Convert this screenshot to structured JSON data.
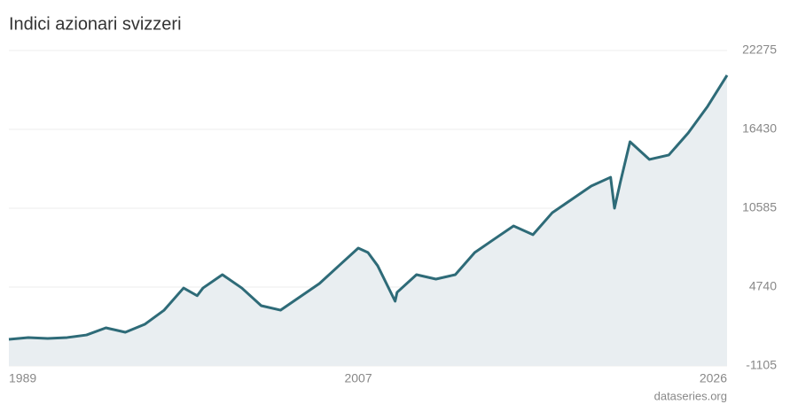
{
  "chart_data": {
    "type": "area",
    "title": "Indici azionari svizzeri",
    "source": "dataseries.org",
    "x": [
      1989,
      1990,
      1991,
      1992,
      1993,
      1994,
      1995,
      1996,
      1997,
      1998,
      1998.7,
      1999,
      2000,
      2001,
      2002,
      2003,
      2004,
      2005,
      2006,
      2007,
      2007.5,
      2008,
      2008.9,
      2009,
      2010,
      2011,
      2012,
      2013,
      2014,
      2015,
      2016,
      2017,
      2018,
      2019,
      2020,
      2020.2,
      2020.5,
      2021,
      2022,
      2023,
      2024,
      2025,
      2026
    ],
    "values": [
      865,
      1000,
      930,
      1000,
      1190,
      1720,
      1390,
      1980,
      3030,
      4670,
      4100,
      4670,
      5660,
      4670,
      3360,
      3030,
      4020,
      5000,
      6320,
      7630,
      7300,
      6320,
      3690,
      4350,
      5660,
      5330,
      5660,
      7300,
      8290,
      9270,
      8620,
      10260,
      11240,
      12230,
      12880,
      10585,
      12500,
      15510,
      14200,
      14530,
      16170,
      18140,
      20440
    ],
    "color": "#2e6b78",
    "area_color": "#e9eef1",
    "xlim": [
      1989,
      2026
    ],
    "xticks": [
      1989,
      2007,
      2026
    ],
    "ylim": [
      -1105,
      22275
    ],
    "yticks": [
      -1105,
      4740,
      10585,
      16430,
      22275
    ],
    "grid": true
  }
}
